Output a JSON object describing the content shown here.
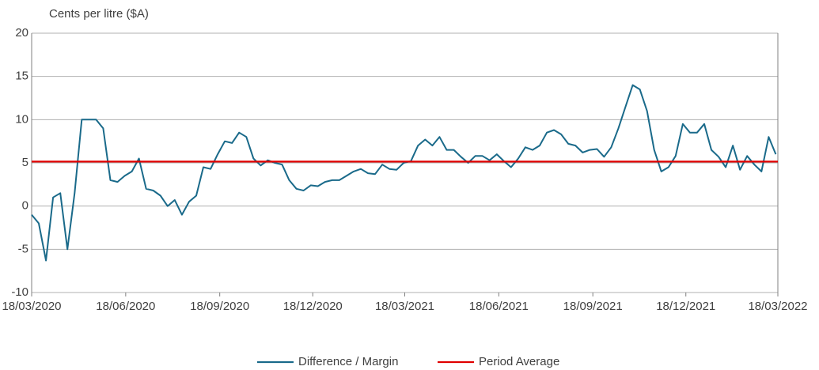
{
  "chart_data": {
    "type": "line",
    "y_label": "Cents per litre ($A)",
    "ylim": [
      -10,
      20
    ],
    "yticks": [
      -10,
      -5,
      0,
      5,
      10,
      15,
      20
    ],
    "xlim": [
      "2020-03-18",
      "2022-03-18"
    ],
    "xticks": [
      {
        "value": "2020-03-18",
        "label": "18/03/2020"
      },
      {
        "value": "2020-06-18",
        "label": "18/06/2020"
      },
      {
        "value": "2020-09-18",
        "label": "18/09/2020"
      },
      {
        "value": "2020-12-18",
        "label": "18/12/2020"
      },
      {
        "value": "2021-03-18",
        "label": "18/03/2021"
      },
      {
        "value": "2021-06-18",
        "label": "18/06/2021"
      },
      {
        "value": "2021-09-18",
        "label": "18/09/2021"
      },
      {
        "value": "2021-12-18",
        "label": "18/12/2021"
      },
      {
        "value": "2022-03-18",
        "label": "18/03/2022"
      }
    ],
    "grid": true,
    "legend": "bottom",
    "series": [
      {
        "name": "Difference / Margin",
        "color": "#1a6a8a",
        "x": [
          "2020-03-18",
          "2020-03-25",
          "2020-04-01",
          "2020-04-08",
          "2020-04-15",
          "2020-04-22",
          "2020-04-29",
          "2020-05-06",
          "2020-05-13",
          "2020-05-20",
          "2020-05-27",
          "2020-06-03",
          "2020-06-10",
          "2020-06-17",
          "2020-06-24",
          "2020-07-01",
          "2020-07-08",
          "2020-07-15",
          "2020-07-22",
          "2020-07-29",
          "2020-08-05",
          "2020-08-12",
          "2020-08-19",
          "2020-08-26",
          "2020-09-02",
          "2020-09-09",
          "2020-09-16",
          "2020-09-23",
          "2020-09-30",
          "2020-10-07",
          "2020-10-14",
          "2020-10-21",
          "2020-10-28",
          "2020-11-04",
          "2020-11-11",
          "2020-11-18",
          "2020-11-25",
          "2020-12-02",
          "2020-12-09",
          "2020-12-16",
          "2020-12-23",
          "2020-12-30",
          "2021-01-06",
          "2021-01-13",
          "2021-01-20",
          "2021-01-27",
          "2021-02-03",
          "2021-02-10",
          "2021-02-17",
          "2021-02-24",
          "2021-03-03",
          "2021-03-10",
          "2021-03-17",
          "2021-03-24",
          "2021-03-31",
          "2021-04-07",
          "2021-04-14",
          "2021-04-21",
          "2021-04-28",
          "2021-05-05",
          "2021-05-12",
          "2021-05-19",
          "2021-05-26",
          "2021-06-02",
          "2021-06-09",
          "2021-06-16",
          "2021-06-23",
          "2021-06-30",
          "2021-07-07",
          "2021-07-14",
          "2021-07-21",
          "2021-07-28",
          "2021-08-04",
          "2021-08-11",
          "2021-08-18",
          "2021-08-25",
          "2021-09-01",
          "2021-09-08",
          "2021-09-15",
          "2021-09-22",
          "2021-09-29",
          "2021-10-06",
          "2021-10-13",
          "2021-10-20",
          "2021-10-27",
          "2021-11-03",
          "2021-11-10",
          "2021-11-17",
          "2021-11-24",
          "2021-12-01",
          "2021-12-08",
          "2021-12-15",
          "2021-12-22",
          "2021-12-29",
          "2022-01-05",
          "2022-01-12",
          "2022-01-19",
          "2022-01-26",
          "2022-02-02",
          "2022-02-09",
          "2022-02-16",
          "2022-02-23",
          "2022-03-02",
          "2022-03-09",
          "2022-03-16"
        ],
        "values": [
          -1,
          -2,
          -6.3,
          1,
          1.5,
          -5,
          1.5,
          10,
          10,
          10,
          9,
          3,
          2.8,
          3.5,
          4,
          5.5,
          2,
          1.8,
          1.2,
          0,
          0.7,
          -1,
          0.5,
          1.2,
          4.5,
          4.3,
          6,
          7.5,
          7.3,
          8.5,
          8,
          5.5,
          4.7,
          5.3,
          5,
          4.8,
          3,
          2,
          1.8,
          2.4,
          2.3,
          2.8,
          3,
          3,
          3.5,
          4,
          4.3,
          3.8,
          3.7,
          4.8,
          4.3,
          4.2,
          5,
          5.2,
          7,
          7.7,
          7,
          8,
          6.5,
          6.5,
          5.7,
          5,
          5.8,
          5.8,
          5.3,
          6,
          5.2,
          4.5,
          5.5,
          6.8,
          6.5,
          7,
          8.5,
          8.8,
          8.3,
          7.2,
          7,
          6.2,
          6.5,
          6.6,
          5.7,
          6.8,
          9,
          11.5,
          14,
          13.5,
          11,
          6.5,
          4,
          4.5,
          5.8,
          9.5,
          8.5,
          8.5,
          9.5,
          6.5,
          5.7,
          4.5,
          7,
          4.2,
          5.8,
          4.8,
          4,
          8,
          6
        ]
      },
      {
        "name": "Period Average",
        "color": "#e00000",
        "x": [
          "2020-03-18",
          "2022-03-18"
        ],
        "values": [
          5.15,
          5.15
        ]
      }
    ]
  }
}
